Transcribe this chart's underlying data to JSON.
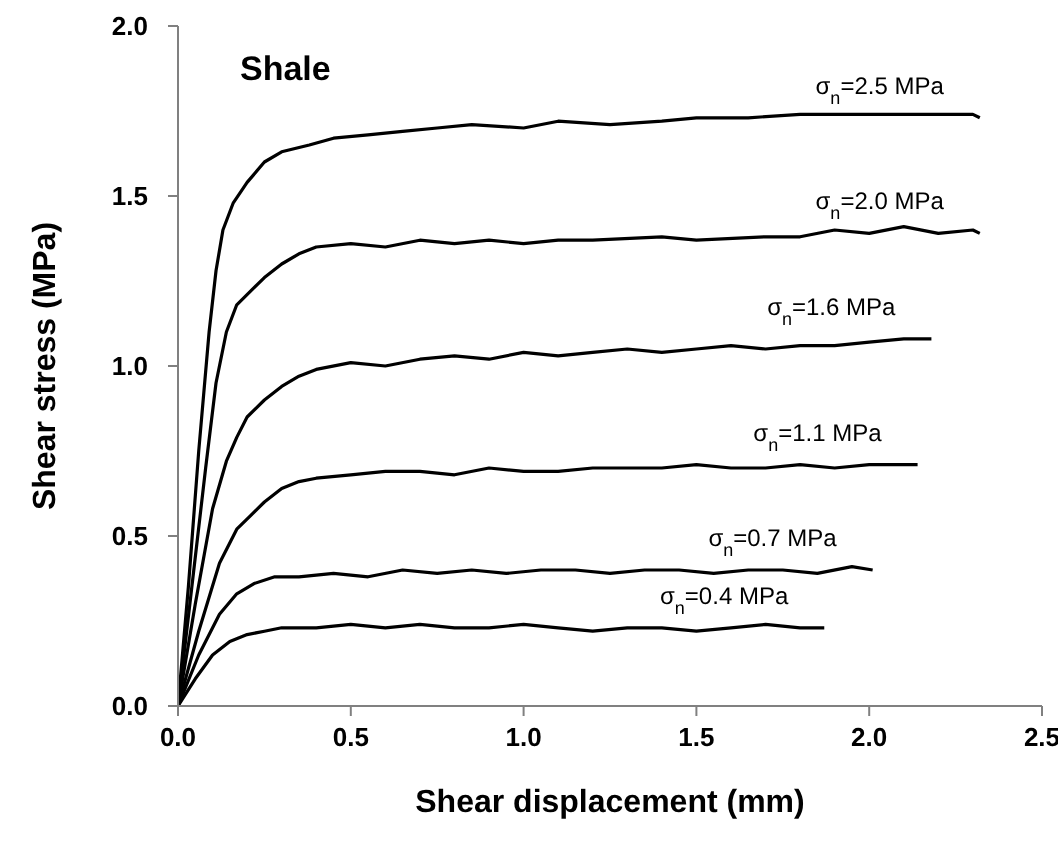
{
  "chart_data": {
    "type": "line",
    "title": "Shale",
    "xlabel": "Shear displacement (mm)",
    "ylabel": "Shear stress (MPa)",
    "xlim": [
      0,
      2.5
    ],
    "xticks": [
      {
        "value": 0,
        "label": "0.0"
      },
      0.5,
      {
        "value": 1,
        "label": "1.0"
      },
      1.5,
      {
        "value": 2,
        "label": "2.0"
      },
      2.5
    ],
    "ylim": [
      0,
      2
    ],
    "yticks": [
      {
        "value": 0,
        "label": "0.0"
      },
      0.5,
      {
        "value": 1,
        "label": "1.0"
      },
      1.5,
      {
        "value": 2,
        "label": "2.0"
      }
    ],
    "series": [
      {
        "name": "σ$_{n}$=2.5 MPa",
        "color": "#000000",
        "x": [
          0,
          0.03,
          0.06,
          0.09,
          0.11,
          0.13,
          0.16,
          0.2,
          0.25,
          0.3,
          0.38,
          0.45,
          0.55,
          0.65,
          0.75,
          0.85,
          1.0,
          1.1,
          1.25,
          1.4,
          1.5,
          1.65,
          1.8,
          2.0,
          2.15,
          2.3,
          2.32
        ],
        "values": [
          0,
          0.35,
          0.75,
          1.1,
          1.28,
          1.4,
          1.48,
          1.54,
          1.6,
          1.63,
          1.65,
          1.67,
          1.68,
          1.69,
          1.7,
          1.71,
          1.7,
          1.72,
          1.71,
          1.72,
          1.73,
          1.73,
          1.74,
          1.74,
          1.74,
          1.74,
          1.73
        ]
      },
      {
        "name": "σ$_{n}$=2.0 MPa",
        "color": "#000000",
        "x": [
          0,
          0.04,
          0.08,
          0.11,
          0.14,
          0.17,
          0.21,
          0.25,
          0.3,
          0.35,
          0.4,
          0.5,
          0.6,
          0.7,
          0.8,
          0.9,
          1.0,
          1.1,
          1.2,
          1.4,
          1.5,
          1.7,
          1.8,
          1.9,
          2.0,
          2.1,
          2.2,
          2.3,
          2.32
        ],
        "values": [
          0,
          0.35,
          0.7,
          0.95,
          1.1,
          1.18,
          1.22,
          1.26,
          1.3,
          1.33,
          1.35,
          1.36,
          1.35,
          1.37,
          1.36,
          1.37,
          1.36,
          1.37,
          1.37,
          1.38,
          1.37,
          1.38,
          1.38,
          1.4,
          1.39,
          1.41,
          1.39,
          1.4,
          1.39
        ]
      },
      {
        "name": "σ$_{n}$=1.6 MPa",
        "color": "#000000",
        "x": [
          0,
          0.05,
          0.1,
          0.14,
          0.17,
          0.2,
          0.25,
          0.3,
          0.35,
          0.4,
          0.5,
          0.6,
          0.7,
          0.8,
          0.9,
          1.0,
          1.1,
          1.2,
          1.3,
          1.4,
          1.5,
          1.6,
          1.7,
          1.8,
          1.9,
          2.0,
          2.1,
          2.18
        ],
        "values": [
          0,
          0.3,
          0.58,
          0.72,
          0.79,
          0.85,
          0.9,
          0.94,
          0.97,
          0.99,
          1.01,
          1.0,
          1.02,
          1.03,
          1.02,
          1.04,
          1.03,
          1.04,
          1.05,
          1.04,
          1.05,
          1.06,
          1.05,
          1.06,
          1.06,
          1.07,
          1.08,
          1.08
        ]
      },
      {
        "name": "σ$_{n}$=1.1 MPa",
        "color": "#000000",
        "x": [
          0,
          0.06,
          0.12,
          0.17,
          0.21,
          0.25,
          0.3,
          0.35,
          0.4,
          0.5,
          0.6,
          0.7,
          0.8,
          0.9,
          1.0,
          1.1,
          1.2,
          1.3,
          1.4,
          1.5,
          1.6,
          1.7,
          1.8,
          1.9,
          2.0,
          2.1,
          2.14
        ],
        "values": [
          0,
          0.22,
          0.42,
          0.52,
          0.56,
          0.6,
          0.64,
          0.66,
          0.67,
          0.68,
          0.69,
          0.69,
          0.68,
          0.7,
          0.69,
          0.69,
          0.7,
          0.7,
          0.7,
          0.71,
          0.7,
          0.7,
          0.71,
          0.7,
          0.71,
          0.71,
          0.71
        ]
      },
      {
        "name": "σ$_{n}$=0.7 MPa",
        "color": "#000000",
        "x": [
          0,
          0.06,
          0.12,
          0.17,
          0.22,
          0.28,
          0.35,
          0.45,
          0.55,
          0.65,
          0.75,
          0.85,
          0.95,
          1.05,
          1.15,
          1.25,
          1.35,
          1.45,
          1.55,
          1.65,
          1.75,
          1.85,
          1.95,
          2.01
        ],
        "values": [
          0,
          0.15,
          0.27,
          0.33,
          0.36,
          0.38,
          0.38,
          0.39,
          0.38,
          0.4,
          0.39,
          0.4,
          0.39,
          0.4,
          0.4,
          0.39,
          0.4,
          0.4,
          0.39,
          0.4,
          0.4,
          0.39,
          0.41,
          0.4
        ]
      },
      {
        "name": "σ$_{n}$=0.4 MPa",
        "color": "#000000",
        "x": [
          0,
          0.05,
          0.1,
          0.15,
          0.2,
          0.25,
          0.3,
          0.4,
          0.5,
          0.6,
          0.7,
          0.8,
          0.9,
          1.0,
          1.1,
          1.2,
          1.3,
          1.4,
          1.5,
          1.6,
          1.7,
          1.8,
          1.87
        ],
        "values": [
          0,
          0.08,
          0.15,
          0.19,
          0.21,
          0.22,
          0.23,
          0.23,
          0.24,
          0.23,
          0.24,
          0.23,
          0.23,
          0.24,
          0.23,
          0.22,
          0.23,
          0.23,
          0.22,
          0.23,
          0.24,
          0.23,
          0.23
        ]
      }
    ]
  }
}
